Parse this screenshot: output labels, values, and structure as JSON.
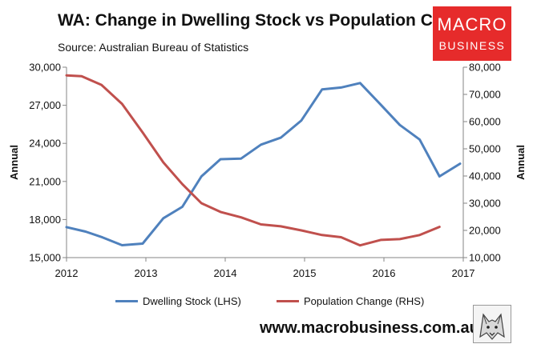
{
  "header": {
    "title": "WA: Change in Dwelling Stock vs Population Change",
    "source": "Source: Australian Bureau of Statistics"
  },
  "logo": {
    "line1": "MACRO",
    "line2": "BUSINESS"
  },
  "footer": {
    "url": "www.macrobusiness.com.au"
  },
  "colors": {
    "dwelling": "#4f81bd",
    "population": "#c0504d",
    "logo_bg": "#e62b2b"
  },
  "chart_data": {
    "type": "line",
    "title": "WA: Change in Dwelling Stock vs Population Change",
    "xlabel": "",
    "ylabel_left": "Annual",
    "ylabel_right": "Annual",
    "xlim": [
      2012,
      2017
    ],
    "x_ticks": [
      "2012",
      "2013",
      "2014",
      "2015",
      "2016",
      "2017"
    ],
    "ylim_left": [
      15000,
      30000
    ],
    "y_ticks_left": [
      "15,000",
      "18,000",
      "21,000",
      "24,000",
      "27,000",
      "30,000"
    ],
    "ylim_right": [
      10000,
      80000
    ],
    "y_ticks_right": [
      "10,000",
      "20,000",
      "30,000",
      "40,000",
      "50,000",
      "60,000",
      "70,000",
      "80,000"
    ],
    "gridlines": false,
    "legend_position": "bottom",
    "series": [
      {
        "name": "Dwelling Stock (LHS)",
        "axis": "left",
        "color": "#4f81bd",
        "x": [
          2012.0,
          2012.24,
          2012.45,
          2012.7,
          2012.96,
          2013.22,
          2013.46,
          2013.7,
          2013.94,
          2014.2,
          2014.45,
          2014.7,
          2014.96,
          2015.22,
          2015.46,
          2015.7,
          2015.96,
          2016.2,
          2016.45,
          2016.7,
          2016.96
        ],
        "values": [
          17400,
          17050,
          16600,
          15980,
          16100,
          18100,
          19000,
          21400,
          22750,
          22800,
          23900,
          24450,
          25800,
          28250,
          28400,
          28750,
          27050,
          25450,
          24300,
          21400,
          22400
        ]
      },
      {
        "name": "Population Change (RHS)",
        "axis": "right",
        "color": "#c0504d",
        "x": [
          2012.0,
          2012.19,
          2012.44,
          2012.7,
          2012.96,
          2013.22,
          2013.46,
          2013.7,
          2013.94,
          2014.2,
          2014.45,
          2014.7,
          2014.96,
          2015.22,
          2015.46,
          2015.7,
          2015.96,
          2016.2,
          2016.45,
          2016.7
        ],
        "values": [
          77000,
          76700,
          73500,
          66500,
          56000,
          45000,
          37000,
          30000,
          26800,
          24800,
          22200,
          21500,
          20000,
          18300,
          17500,
          14500,
          16500,
          16800,
          18300,
          21300
        ]
      }
    ]
  }
}
